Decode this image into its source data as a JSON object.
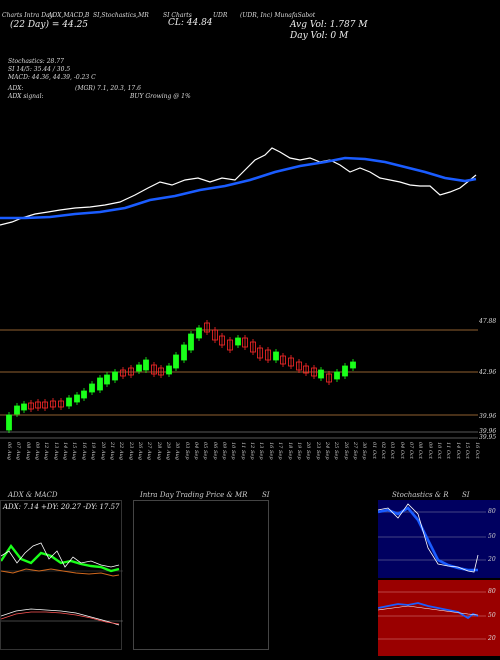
{
  "header": {
    "ticker_info": "(UDR, Inc) MunafaSabot",
    "tab1": "Charts Intra Day",
    "tab2": "ADX,MACD,B",
    "tab3": "SI,Stochastics,MR",
    "tab4": "SI Charts",
    "tab5": "UDR",
    "tab6": "(UDR, Inc) MunafaSabot",
    "close_label": "CL: 44.84",
    "avg_vol": "Avg Vol: 1.787 M",
    "day_vol": "Day Vol: 0  M",
    "date_line": "(22 Day) = 44.25"
  },
  "indicators": {
    "stochastics": "Stochastics: 28.77",
    "rsi": "SI 14/5: 35.44 / 30.5",
    "macd": "MACD: 44.36, 44.39, -0.23 C",
    "adx": "ADX:",
    "adx_values": "(MGR) 7.1, 20.3,  17.6",
    "adx_signal": "ADX  signal:",
    "buy_signal": "BUY Growing @ 1%"
  },
  "price_axis": {
    "labels": [
      "47.88",
      "42.96",
      "39.96",
      "39.96",
      "39.95"
    ]
  },
  "dates": [
    "06 Aug",
    "07 Aug",
    "08 Aug",
    "09 Aug",
    "12 Aug",
    "13 Aug",
    "14 Aug",
    "15 Aug",
    "16 Aug",
    "19 Aug",
    "20 Aug",
    "21 Aug",
    "22 Aug",
    "23 Aug",
    "26 Aug",
    "27 Aug",
    "28 Aug",
    "29 Aug",
    "30 Aug",
    "03 Sep",
    "04 Sep",
    "05 Sep",
    "06 Sep",
    "09 Sep",
    "10 Sep",
    "11 Sep",
    "12 Sep",
    "13 Sep",
    "16 Sep",
    "17 Sep",
    "18 Sep",
    "19 Sep",
    "20 Sep",
    "23 Sep",
    "24 Sep",
    "25 Sep",
    "26 Sep",
    "27 Sep",
    "30 Sep",
    "01 Oct",
    "02 Oct",
    "03 Oct",
    "04 Oct",
    "07 Oct",
    "08 Oct",
    "09 Oct",
    "10 Oct",
    "11 Oct",
    "14 Oct",
    "15 Oct",
    "16 Oct"
  ],
  "bottom_panels": {
    "adx_title": "ADX  & MACD",
    "adx_readout": "ADX: 7.14  +DY: 20.27 -DY: 17.57",
    "intraday_title": "Intra  Day Trading Price  & MR",
    "intraday_si": "SI",
    "stoch_title": "Stochastics & R",
    "stoch_si": "SI",
    "stoch_ticks": [
      "80",
      "50",
      "20"
    ],
    "rsi_ticks": [
      "80",
      "50",
      "20"
    ]
  },
  "colors": {
    "ma_blue": "#1a5cff",
    "price_white": "#ffffff",
    "up_green": "#1aff1a",
    "down_red": "#ff2a2a",
    "stoch_bg": "#000060",
    "rsi_bg": "#9a0000"
  }
}
